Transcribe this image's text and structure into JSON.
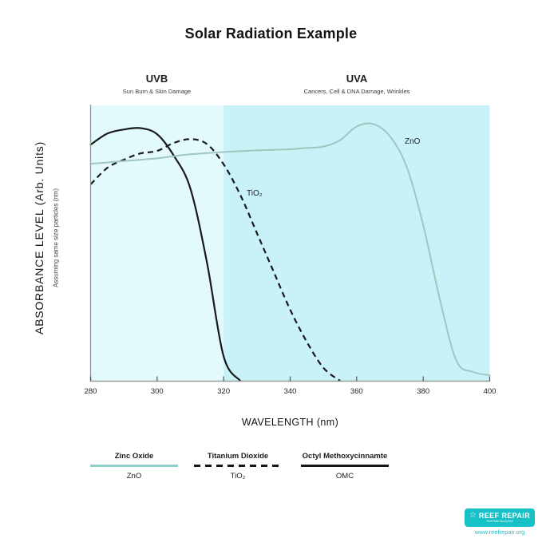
{
  "title": "Solar Radiation Example",
  "regions": {
    "uvb": {
      "label": "UVB",
      "subtitle": "Sun Burn & Skin Damage",
      "color": "#e2fafc"
    },
    "uva": {
      "label": "UVA",
      "subtitle": "Cancers, Cell & DNA Damage, Wrinkles",
      "color": "#c9f2f8"
    }
  },
  "axes": {
    "y_label": "ABSORBANCE LEVEL (Arb. Units)",
    "y_note": "Assuming same size particles (nm)",
    "x_label": "WAVELENGTH (nm)",
    "x_ticks": [
      "280",
      "300",
      "320",
      "340",
      "360",
      "380",
      "400"
    ]
  },
  "curve_labels": {
    "zno": "ZnO",
    "tio2": "TiO₂"
  },
  "legend": [
    {
      "name": "Zinc Oxide",
      "abbr": "ZnO",
      "style": "solid-teal",
      "color": "#8ed1ca"
    },
    {
      "name": "Titanium Dioxide",
      "abbr": "TiO₂",
      "style": "dashed-black",
      "color": "#161616"
    },
    {
      "name": "Octyl Methoxycinnamte",
      "abbr": "OMC",
      "style": "solid-black",
      "color": "#161616"
    }
  ],
  "branding": {
    "logo_text": "REEF REPAIR",
    "tagline": "Reef Safe Sunscreen",
    "website": "www.reefrepair.org",
    "brand_color": "#16c2c6"
  },
  "chart_data": {
    "type": "line",
    "title": "Solar Radiation Example",
    "xlabel": "WAVELENGTH (nm)",
    "ylabel": "ABSORBANCE LEVEL (Arb. Units)",
    "xlim": [
      280,
      400
    ],
    "ylim": [
      0,
      1
    ],
    "grid": false,
    "bands": [
      {
        "label": "UVB",
        "range": [
          280,
          320
        ]
      },
      {
        "label": "UVA",
        "range": [
          320,
          400
        ]
      }
    ],
    "series": [
      {
        "name": "ZnO",
        "color": "#9fc6bf",
        "dash": "solid",
        "x": [
          280,
          285,
          290,
          295,
          300,
          305,
          310,
          315,
          320,
          325,
          330,
          335,
          340,
          345,
          350,
          355,
          360,
          365,
          370,
          375,
          380,
          385,
          390,
          395,
          400
        ],
        "values": [
          0.79,
          0.795,
          0.8,
          0.805,
          0.81,
          0.818,
          0.825,
          0.829,
          0.833,
          0.836,
          0.839,
          0.841,
          0.843,
          0.848,
          0.853,
          0.876,
          0.926,
          0.935,
          0.89,
          0.78,
          0.567,
          0.297,
          0.073,
          0.032,
          0.02
        ]
      },
      {
        "name": "TiO₂",
        "color": "#191919",
        "dash": "dashed",
        "x": [
          280,
          285,
          290,
          295,
          300,
          305,
          310,
          315,
          320,
          325,
          330,
          335,
          340,
          345,
          350,
          355
        ],
        "values": [
          0.715,
          0.775,
          0.805,
          0.828,
          0.837,
          0.866,
          0.88,
          0.862,
          0.788,
          0.677,
          0.538,
          0.398,
          0.259,
          0.142,
          0.047,
          0.0
        ]
      },
      {
        "name": "OMC",
        "color": "#191919",
        "dash": "solid",
        "x": [
          280,
          285,
          290,
          295,
          300,
          305,
          310,
          315,
          320,
          325
        ],
        "values": [
          0.86,
          0.9,
          0.915,
          0.92,
          0.898,
          0.82,
          0.7,
          0.43,
          0.088,
          0.0
        ]
      }
    ]
  }
}
